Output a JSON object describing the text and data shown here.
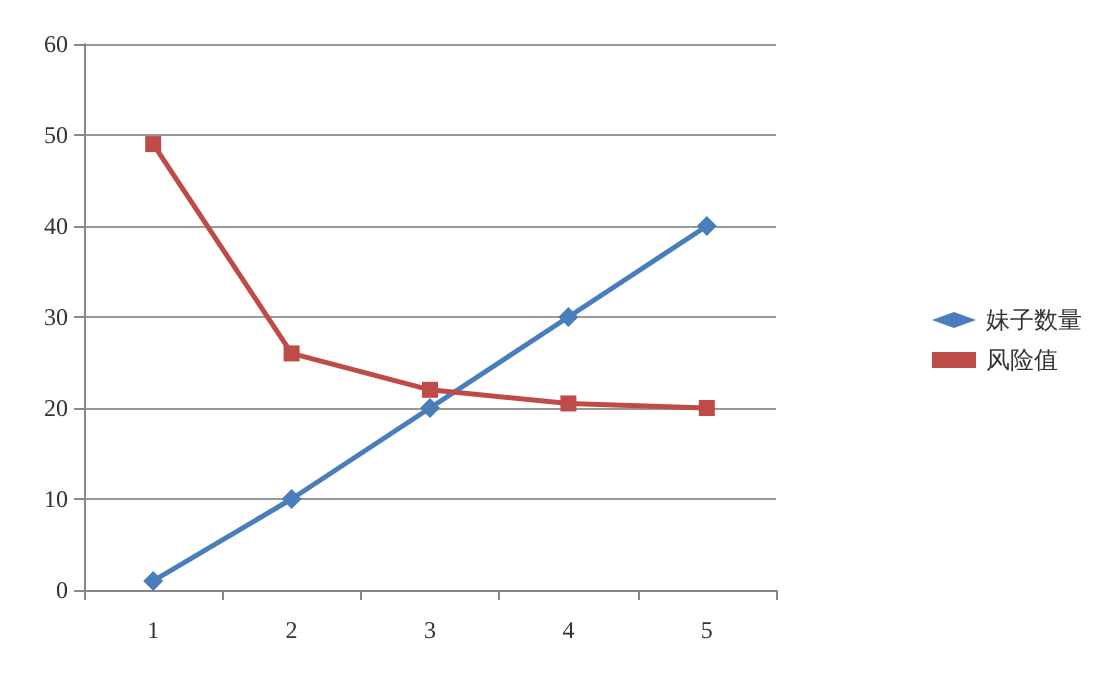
{
  "chart_data": {
    "type": "line",
    "categories": [
      "1",
      "2",
      "3",
      "4",
      "5"
    ],
    "series": [
      {
        "name": "妹子数量",
        "color": "#4a7ebb",
        "marker": "diamond",
        "values": [
          1,
          10,
          20,
          30,
          40
        ]
      },
      {
        "name": "风险值",
        "color": "#be4b48",
        "marker": "square",
        "values": [
          49,
          26,
          22,
          20.5,
          20
        ]
      }
    ],
    "ylim": [
      0,
      60
    ],
    "yticks": [
      0,
      10,
      20,
      30,
      40,
      50,
      60
    ],
    "grid": "y",
    "legend": "right"
  }
}
